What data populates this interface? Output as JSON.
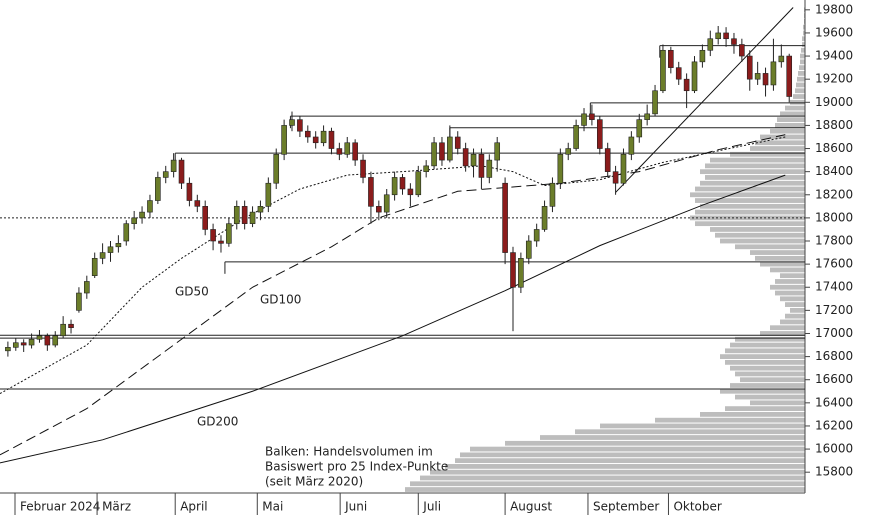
{
  "chart_data": {
    "type": "candlestick",
    "ylim": [
      15620,
      19885
    ],
    "yticks": [
      15800,
      16000,
      16200,
      16400,
      16600,
      16800,
      17000,
      17200,
      17400,
      17600,
      17800,
      18000,
      18200,
      18400,
      18600,
      18800,
      19000,
      19200,
      19400,
      19600,
      19800
    ],
    "xlim": [
      -1,
      101
    ],
    "xticks": [
      {
        "value": 0.9,
        "label": "Februar 2024"
      },
      {
        "value": 11.3,
        "label": "März"
      },
      {
        "value": 21.2,
        "label": "April"
      },
      {
        "value": 31.6,
        "label": "Mai"
      },
      {
        "value": 42.1,
        "label": "Juni"
      },
      {
        "value": 52,
        "label": "Juli"
      },
      {
        "value": 63,
        "label": "August"
      },
      {
        "value": 73.5,
        "label": "September"
      },
      {
        "value": 83.7,
        "label": "Oktober"
      }
    ],
    "up_color": "#6b7d2a",
    "down_color": "#8b1c1c",
    "candles": [
      [
        16850,
        16930,
        16800,
        16880
      ],
      [
        16880,
        16960,
        16850,
        16920
      ],
      [
        16920,
        16950,
        16840,
        16900
      ],
      [
        16900,
        17000,
        16870,
        16950
      ],
      [
        16950,
        17030,
        16920,
        16980
      ],
      [
        16980,
        17000,
        16850,
        16900
      ],
      [
        16900,
        17020,
        16880,
        16980
      ],
      [
        16980,
        17150,
        16960,
        17080
      ],
      [
        17080,
        17120,
        17000,
        17050
      ],
      [
        17200,
        17400,
        17180,
        17350
      ],
      [
        17350,
        17500,
        17300,
        17450
      ],
      [
        17500,
        17700,
        17480,
        17650
      ],
      [
        17650,
        17780,
        17600,
        17700
      ],
      [
        17700,
        17800,
        17620,
        17750
      ],
      [
        17750,
        17850,
        17700,
        17780
      ],
      [
        17800,
        17980,
        17760,
        17950
      ],
      [
        17950,
        18060,
        17900,
        18000
      ],
      [
        18000,
        18100,
        17950,
        18050
      ],
      [
        18050,
        18200,
        18000,
        18150
      ],
      [
        18150,
        18400,
        18120,
        18350
      ],
      [
        18350,
        18450,
        18300,
        18400
      ],
      [
        18400,
        18560,
        18350,
        18500
      ],
      [
        18500,
        18520,
        18250,
        18300
      ],
      [
        18300,
        18350,
        18100,
        18150
      ],
      [
        18150,
        18200,
        18050,
        18100
      ],
      [
        18100,
        18150,
        17850,
        17900
      ],
      [
        17900,
        17950,
        17720,
        17800
      ],
      [
        17800,
        17850,
        17700,
        17780
      ],
      [
        17780,
        18000,
        17750,
        17950
      ],
      [
        17950,
        18150,
        17900,
        18100
      ],
      [
        18100,
        18150,
        17900,
        17950
      ],
      [
        17950,
        18100,
        17920,
        18050
      ],
      [
        18050,
        18150,
        17980,
        18100
      ],
      [
        18100,
        18350,
        18050,
        18300
      ],
      [
        18300,
        18600,
        18250,
        18550
      ],
      [
        18550,
        18850,
        18500,
        18800
      ],
      [
        18800,
        18920,
        18750,
        18850
      ],
      [
        18850,
        18880,
        18700,
        18750
      ],
      [
        18750,
        18800,
        18650,
        18700
      ],
      [
        18700,
        18750,
        18600,
        18650
      ],
      [
        18650,
        18800,
        18620,
        18750
      ],
      [
        18750,
        18780,
        18550,
        18600
      ],
      [
        18600,
        18650,
        18500,
        18550
      ],
      [
        18550,
        18700,
        18520,
        18650
      ],
      [
        18650,
        18680,
        18450,
        18500
      ],
      [
        18500,
        18550,
        18300,
        18350
      ],
      [
        18350,
        18400,
        17950,
        18100
      ],
      [
        18100,
        18150,
        17980,
        18050
      ],
      [
        18050,
        18250,
        18000,
        18200
      ],
      [
        18200,
        18400,
        18150,
        18350
      ],
      [
        18350,
        18380,
        18200,
        18250
      ],
      [
        18250,
        18300,
        18100,
        18200
      ],
      [
        18200,
        18450,
        18180,
        18400
      ],
      [
        18400,
        18500,
        18350,
        18450
      ],
      [
        18450,
        18700,
        18420,
        18650
      ],
      [
        18650,
        18700,
        18450,
        18500
      ],
      [
        18500,
        18800,
        18480,
        18700
      ],
      [
        18700,
        18750,
        18550,
        18600
      ],
      [
        18600,
        18650,
        18400,
        18450
      ],
      [
        18450,
        18600,
        18350,
        18550
      ],
      [
        18550,
        18600,
        18250,
        18350
      ],
      [
        18350,
        18550,
        18300,
        18500
      ],
      [
        18500,
        18700,
        18400,
        18650
      ],
      [
        18300,
        18350,
        17600,
        17700
      ],
      [
        17700,
        17750,
        17020,
        17400
      ],
      [
        17400,
        17700,
        17350,
        17650
      ],
      [
        17650,
        17850,
        17600,
        17800
      ],
      [
        17800,
        17950,
        17750,
        17900
      ],
      [
        17900,
        18150,
        17880,
        18100
      ],
      [
        18100,
        18350,
        18050,
        18300
      ],
      [
        18300,
        18600,
        18250,
        18550
      ],
      [
        18550,
        18650,
        18500,
        18600
      ],
      [
        18600,
        18850,
        18580,
        18800
      ],
      [
        18800,
        18950,
        18750,
        18900
      ],
      [
        18900,
        18980,
        18800,
        18850
      ],
      [
        18850,
        18880,
        18550,
        18600
      ],
      [
        18600,
        18650,
        18350,
        18400
      ],
      [
        18400,
        18450,
        18200,
        18300
      ],
      [
        18300,
        18600,
        18280,
        18550
      ],
      [
        18550,
        18750,
        18500,
        18700
      ],
      [
        18700,
        18900,
        18650,
        18850
      ],
      [
        18850,
        18980,
        18800,
        18900
      ],
      [
        18900,
        19150,
        18880,
        19100
      ],
      [
        19100,
        19500,
        19080,
        19450
      ],
      [
        19450,
        19480,
        19250,
        19300
      ],
      [
        19300,
        19350,
        19150,
        19200
      ],
      [
        19200,
        19250,
        18950,
        19100
      ],
      [
        19100,
        19400,
        19080,
        19350
      ],
      [
        19350,
        19500,
        19300,
        19450
      ],
      [
        19450,
        19620,
        19400,
        19550
      ],
      [
        19550,
        19660,
        19500,
        19600
      ],
      [
        19600,
        19650,
        19480,
        19550
      ],
      [
        19550,
        19600,
        19420,
        19500
      ],
      [
        19500,
        19550,
        19350,
        19400
      ],
      [
        19400,
        19450,
        19100,
        19200
      ],
      [
        19200,
        19350,
        19150,
        19250
      ],
      [
        19250,
        19300,
        19050,
        19150
      ],
      [
        19150,
        19550,
        19100,
        19350
      ],
      [
        19350,
        19500,
        19300,
        19400
      ],
      [
        19400,
        19420,
        19000,
        19050
      ]
    ],
    "averages": [
      {
        "name": "GD50",
        "dash": "2,2",
        "x": [
          -1,
          10,
          17,
          22,
          30,
          37,
          43,
          50,
          60,
          64,
          68,
          75,
          83,
          90,
          98.5
        ],
        "values": [
          16480,
          16900,
          17400,
          17650,
          18000,
          18250,
          18370,
          18400,
          18450,
          18400,
          18280,
          18330,
          18480,
          18580,
          18700
        ]
      },
      {
        "name": "GD100",
        "dash": "10,5",
        "x": [
          -1,
          10,
          22,
          31,
          41,
          47,
          57,
          70,
          80,
          90,
          98.5
        ],
        "values": [
          15950,
          16350,
          16950,
          17400,
          17750,
          18000,
          18230,
          18300,
          18400,
          18590,
          18720
        ]
      },
      {
        "name": "GD200",
        "dash": "none",
        "x": [
          -1,
          12,
          31,
          50,
          63,
          75,
          88,
          98.5
        ],
        "values": [
          15880,
          16080,
          16500,
          16980,
          17370,
          17760,
          18110,
          18370
        ]
      }
    ],
    "trendline": {
      "x": [
        77,
        99.5
      ],
      "values": [
        18220,
        19820
      ]
    },
    "levels": [
      {
        "value": 19490,
        "from": 82.6
      },
      {
        "value": 18995,
        "from": 73.8
      },
      {
        "value": 18880,
        "from": 35.8
      },
      {
        "value": 18780,
        "from": 56
      },
      {
        "value": 18560,
        "from": 21.2
      },
      {
        "value": 18000,
        "from": -1,
        "dotted": true
      },
      {
        "value": 17620,
        "from": 27.5
      },
      {
        "value": 16985,
        "from": -1
      },
      {
        "value": 16960,
        "from": -1
      },
      {
        "value": 16520,
        "from": -1
      }
    ],
    "volume_profile": {
      "color": "#bdbdbd",
      "prices": [
        15650,
        15700,
        15750,
        15800,
        15850,
        15900,
        15950,
        16000,
        16050,
        16100,
        16150,
        16200,
        16250,
        16300,
        16350,
        16400,
        16450,
        16500,
        16550,
        16600,
        16650,
        16700,
        16750,
        16800,
        16850,
        16900,
        16950,
        17000,
        17050,
        17100,
        17150,
        17200,
        17250,
        17300,
        17350,
        17400,
        17450,
        17500,
        17550,
        17600,
        17650,
        17700,
        17750,
        17800,
        17850,
        17900,
        17950,
        18000,
        18050,
        18100,
        18150,
        18200,
        18250,
        18300,
        18350,
        18400,
        18450,
        18500,
        18550,
        18600,
        18650,
        18700,
        18750,
        18800,
        18850,
        18900,
        18950,
        19000,
        19050,
        19100,
        19150,
        19200,
        19250,
        19300,
        19350,
        19400,
        19450,
        19500,
        19550,
        19600,
        19650,
        19700,
        19750,
        19800
      ],
      "values": [
        400,
        395,
        385,
        375,
        360,
        350,
        345,
        335,
        300,
        265,
        230,
        205,
        150,
        105,
        80,
        55,
        70,
        85,
        75,
        65,
        70,
        75,
        80,
        85,
        80,
        75,
        70,
        45,
        35,
        25,
        20,
        15,
        20,
        25,
        30,
        35,
        30,
        25,
        35,
        45,
        50,
        55,
        70,
        85,
        90,
        95,
        110,
        115,
        110,
        105,
        110,
        115,
        110,
        105,
        100,
        105,
        100,
        95,
        75,
        55,
        50,
        45,
        35,
        30,
        28,
        25,
        20,
        15,
        12,
        10,
        9,
        8,
        7,
        6,
        5,
        5,
        4,
        3,
        3,
        2,
        2,
        1,
        1,
        1
      ]
    },
    "annotation_lines": [
      "Balken: Handelsvolumen im",
      "Basiswert pro 25 Index-Punkte",
      "(seit März 2020)"
    ]
  }
}
